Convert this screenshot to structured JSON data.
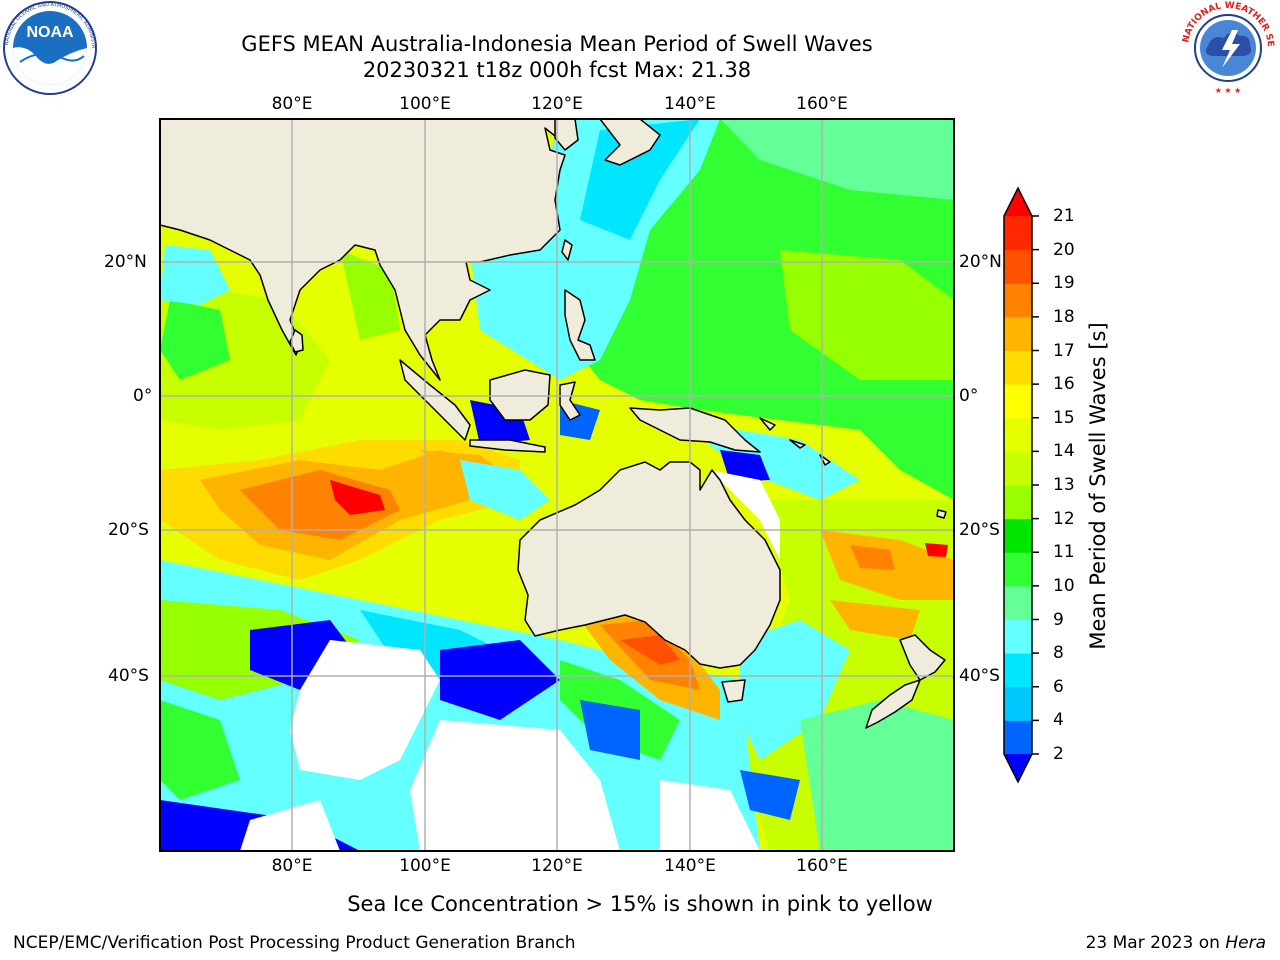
{
  "header": {
    "title_line1": "GEFS MEAN Australia-Indonesia Mean Period of Swell Waves",
    "title_line2": "20230321 t18z 000h fcst   Max: 21.38"
  },
  "logos": {
    "noaa_text": "NOAA",
    "noaa_ring_text": "NATIONAL OCEANIC AND ATMOSPHERIC ADMINISTRATION · U.S. DEPARTMENT OF COMMERCE",
    "nws_ring_text": "NATIONAL WEATHER SERVICE"
  },
  "map": {
    "lon_ticks": [
      "80°E",
      "100°E",
      "120°E",
      "140°E",
      "160°E"
    ],
    "lat_ticks": [
      "20°N",
      "0°",
      "20°S",
      "40°S"
    ],
    "land_color": "#efecdc",
    "grid_color": "#b0b0b0"
  },
  "colorbar": {
    "label": "Mean Period of Swell Waves [s]",
    "tick_labels": [
      "21",
      "20",
      "19",
      "18",
      "17",
      "16",
      "15",
      "14",
      "13",
      "12",
      "11",
      "10",
      "9",
      "8",
      "6",
      "4",
      "2"
    ],
    "levels": [
      2,
      4,
      6,
      8,
      9,
      10,
      11,
      12,
      13,
      14,
      15,
      16,
      17,
      18,
      19,
      20,
      21
    ],
    "colors": [
      "#0000ff",
      "#0064ff",
      "#00c8ff",
      "#00e6ff",
      "#64ffff",
      "#64ff96",
      "#32ff32",
      "#00e600",
      "#96ff00",
      "#c8ff00",
      "#e6ff00",
      "#ffff00",
      "#ffdc00",
      "#ffb400",
      "#ff8200",
      "#ff5000",
      "#ff2800",
      "#ff0000"
    ],
    "extend": "both"
  },
  "notes": {
    "ice": "Sea Ice Concentration > 15% is shown in pink to yellow"
  },
  "footer": {
    "left": "NCEP/EMC/Verification Post Processing Product Generation Branch",
    "date": "23 Mar 2023 on ",
    "host": "Hera"
  }
}
